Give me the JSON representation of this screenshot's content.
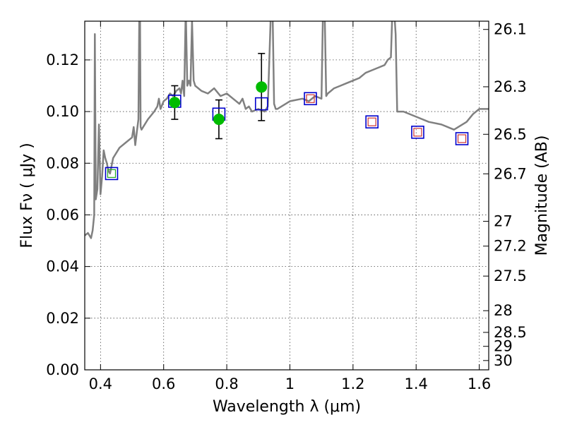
{
  "chart_data": {
    "type": "scatter",
    "xlabel": "Wavelength  λ (μm)",
    "ylabel": "Flux  Fν  ( μJy )",
    "right_ylabel": "Magnitude (AB)",
    "xlim": [
      0.35,
      1.63
    ],
    "ylim": [
      0.0,
      0.135
    ],
    "grid": true,
    "x_ticks": [
      0.4,
      0.6,
      0.8,
      1.0,
      1.2,
      1.4,
      1.6
    ],
    "x_tick_labels": [
      "0.4",
      "0.6",
      "0.8",
      "1",
      "1.2",
      "1.4",
      "1.6"
    ],
    "y_ticks": [
      0.0,
      0.02,
      0.04,
      0.06,
      0.08,
      0.1,
      0.12
    ],
    "y_tick_labels": [
      "0.00",
      "0.02",
      "0.04",
      "0.06",
      "0.08",
      "0.10",
      "0.12"
    ],
    "mag_ticks": [
      {
        "label": "26.1",
        "flux": 0.1318
      },
      {
        "label": "26.3",
        "flux": 0.1096
      },
      {
        "label": "26.5",
        "flux": 0.0912
      },
      {
        "label": "26.7",
        "flux": 0.0759
      },
      {
        "label": "27",
        "flux": 0.0575
      },
      {
        "label": "27.2",
        "flux": 0.0479
      },
      {
        "label": "27.5",
        "flux": 0.0363
      },
      {
        "label": "28",
        "flux": 0.0229
      },
      {
        "label": "28.5",
        "flux": 0.0145
      },
      {
        "label": "29",
        "flux": 0.0091
      },
      {
        "label": "30",
        "flux": 0.0036
      }
    ],
    "colors": {
      "spectrum": "#808080",
      "observed": "#00bb00",
      "model_box": "#0000cc",
      "green_inner": "#22aa22",
      "red_inner": "#cc3333",
      "errorbar": "#000000"
    },
    "series": [
      {
        "type": "line",
        "x": [
          0.35,
          0.36,
          0.37,
          0.375,
          0.38,
          0.382,
          0.385,
          0.39,
          0.395,
          0.4,
          0.405,
          0.41,
          0.415,
          0.42,
          0.425,
          0.43,
          0.44,
          0.46,
          0.48,
          0.5,
          0.505,
          0.51,
          0.515,
          0.52,
          0.523,
          0.525,
          0.527,
          0.53,
          0.55,
          0.57,
          0.58,
          0.585,
          0.59,
          0.6,
          0.61,
          0.62,
          0.63,
          0.64,
          0.65,
          0.655,
          0.66,
          0.665,
          0.67,
          0.675,
          0.68,
          0.685,
          0.69,
          0.695,
          0.7,
          0.72,
          0.74,
          0.76,
          0.78,
          0.8,
          0.82,
          0.84,
          0.85,
          0.86,
          0.87,
          0.88,
          0.9,
          0.92,
          0.93,
          0.94,
          0.945,
          0.95,
          0.955,
          0.96,
          1.0,
          1.04,
          1.06,
          1.08,
          1.1,
          1.105,
          1.11,
          1.115,
          1.12,
          1.14,
          1.16,
          1.18,
          1.2,
          1.22,
          1.24,
          1.26,
          1.28,
          1.3,
          1.31,
          1.32,
          1.325,
          1.33,
          1.335,
          1.34,
          1.345,
          1.36,
          1.4,
          1.44,
          1.48,
          1.52,
          1.56,
          1.58,
          1.6,
          1.63
        ],
        "y": [
          0.052,
          0.053,
          0.051,
          0.054,
          0.06,
          0.13,
          0.066,
          0.07,
          0.095,
          0.068,
          0.075,
          0.085,
          0.082,
          0.08,
          0.077,
          0.076,
          0.082,
          0.086,
          0.088,
          0.09,
          0.094,
          0.087,
          0.092,
          0.097,
          0.14,
          0.14,
          0.094,
          0.093,
          0.097,
          0.1,
          0.102,
          0.105,
          0.101,
          0.104,
          0.105,
          0.107,
          0.106,
          0.108,
          0.109,
          0.107,
          0.112,
          0.106,
          0.14,
          0.11,
          0.112,
          0.11,
          0.135,
          0.112,
          0.11,
          0.108,
          0.107,
          0.109,
          0.106,
          0.107,
          0.105,
          0.103,
          0.105,
          0.101,
          0.102,
          0.1,
          0.101,
          0.1,
          0.102,
          0.14,
          0.14,
          0.103,
          0.101,
          0.101,
          0.104,
          0.105,
          0.104,
          0.106,
          0.105,
          0.14,
          0.14,
          0.106,
          0.107,
          0.109,
          0.11,
          0.111,
          0.112,
          0.113,
          0.115,
          0.116,
          0.117,
          0.118,
          0.12,
          0.121,
          0.14,
          0.14,
          0.13,
          0.1,
          0.1,
          0.1,
          0.098,
          0.096,
          0.095,
          0.093,
          0.096,
          0.099,
          0.101,
          0.101
        ]
      },
      {
        "type": "scatter-errorbar",
        "points": [
          {
            "x": 0.635,
            "y": 0.1035,
            "err": 0.0065
          },
          {
            "x": 0.775,
            "y": 0.097,
            "err": 0.0075
          },
          {
            "x": 0.91,
            "y": 0.1095,
            "err": 0.013
          }
        ]
      },
      {
        "type": "scatter-box",
        "points": [
          {
            "x": 0.435,
            "y": 0.076,
            "inner": "green"
          },
          {
            "x": 0.635,
            "y": 0.104,
            "inner": "none"
          },
          {
            "x": 0.775,
            "y": 0.099,
            "inner": "none"
          },
          {
            "x": 0.91,
            "y": 0.103,
            "inner": "none"
          },
          {
            "x": 1.065,
            "y": 0.105,
            "inner": "red"
          },
          {
            "x": 1.26,
            "y": 0.096,
            "inner": "red"
          },
          {
            "x": 1.405,
            "y": 0.092,
            "inner": "red"
          },
          {
            "x": 1.545,
            "y": 0.0895,
            "inner": "red"
          }
        ]
      }
    ]
  }
}
